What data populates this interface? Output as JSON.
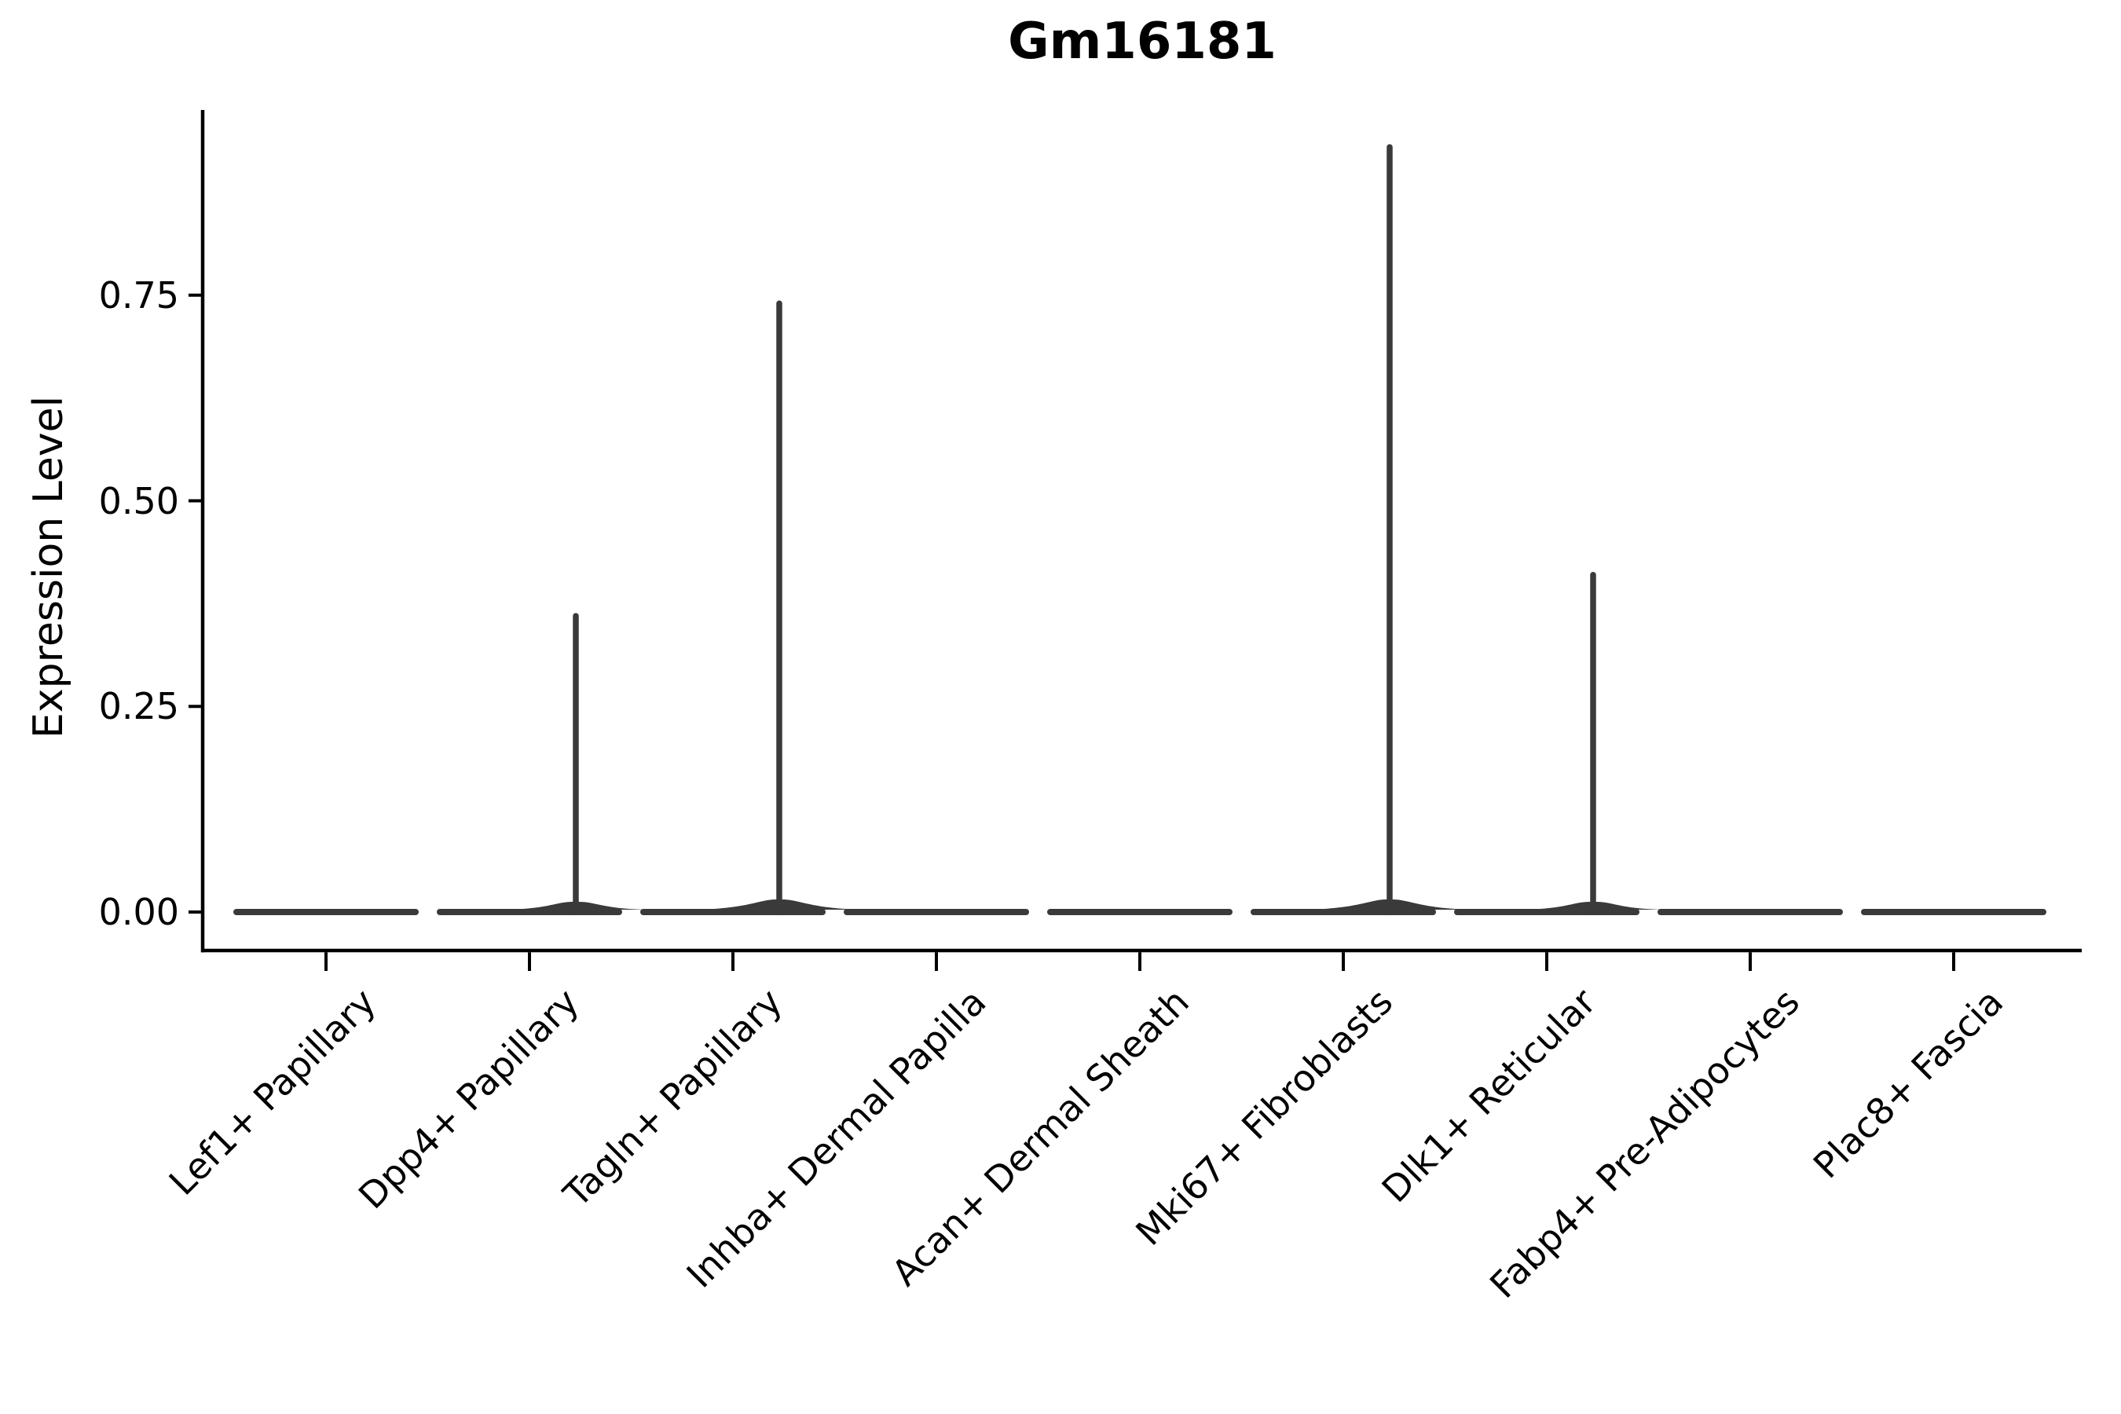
{
  "chart_data": {
    "type": "violin",
    "title": "Gm16181",
    "xlabel": "",
    "ylabel": "Expression Level",
    "y_axis": {
      "tick_labels": [
        "0.00",
        "0.25",
        "0.50",
        "0.75"
      ],
      "tick_values": [
        0,
        0.25,
        0.5,
        0.75
      ],
      "range_shown": [
        -0.05,
        0.97
      ],
      "grid": false
    },
    "legend": "none",
    "categories": [
      "Lef1+ Papillary",
      "Dpp4+ Papillary",
      "Tagln+ Papillary",
      "Inhba+ Dermal Papilla",
      "Acan+ Dermal Sheath",
      "Mki67+ Fibroblasts",
      "Dlk1+ Reticular",
      "Fabp4+ Pre-Adipocytes",
      "Plac8+ Fascia"
    ],
    "series": [
      {
        "name": "Lef1+ Papillary",
        "body_at": 0,
        "max_expression": 0
      },
      {
        "name": "Dpp4+ Papillary",
        "body_at": 0,
        "max_expression": 0.36
      },
      {
        "name": "Tagln+ Papillary",
        "body_at": 0,
        "max_expression": 0.74
      },
      {
        "name": "Inhba+ Dermal Papilla",
        "body_at": 0,
        "max_expression": 0
      },
      {
        "name": "Acan+ Dermal Sheath",
        "body_at": 0,
        "max_expression": 0
      },
      {
        "name": "Mki67+ Fibroblasts",
        "body_at": 0,
        "max_expression": 0.93
      },
      {
        "name": "Dlk1+ Reticular",
        "body_at": 0,
        "max_expression": 0.41
      },
      {
        "name": "Fabp4+ Pre-Adipocytes",
        "body_at": 0,
        "max_expression": 0
      },
      {
        "name": "Plac8+ Fascia",
        "body_at": 0,
        "max_expression": 0
      }
    ],
    "colors": {
      "violin": "#3a3a3a",
      "axis": "#000000",
      "text": "#000000",
      "background": "#ffffff"
    }
  }
}
